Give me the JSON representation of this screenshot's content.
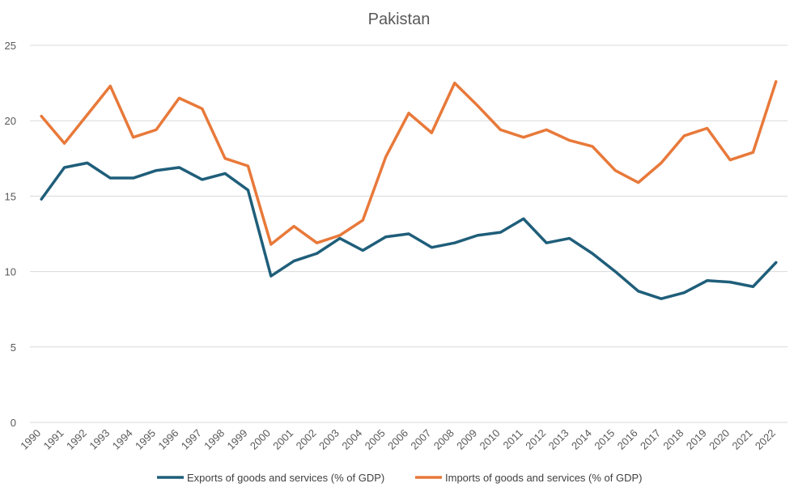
{
  "chart_data": {
    "type": "line",
    "title": "Pakistan",
    "xlabel": "",
    "ylabel": "",
    "x": [
      "1990",
      "1991",
      "1992",
      "1993",
      "1994",
      "1995",
      "1996",
      "1997",
      "1998",
      "1999",
      "2000",
      "2001",
      "2002",
      "2003",
      "2004",
      "2005",
      "2006",
      "2007",
      "2008",
      "2009",
      "2010",
      "2011",
      "2012",
      "2013",
      "2014",
      "2015",
      "2016",
      "2017",
      "2018",
      "2019",
      "2020",
      "2021",
      "2022"
    ],
    "ylim": [
      0,
      25
    ],
    "yticks": [
      0,
      5,
      10,
      15,
      20,
      25
    ],
    "grid": true,
    "legend_position": "bottom",
    "series": [
      {
        "name": "Exports of goods and services (% of GDP)",
        "color": "#1f5e7a",
        "values": [
          14.8,
          16.9,
          17.2,
          16.2,
          16.2,
          16.7,
          16.9,
          16.1,
          16.5,
          15.4,
          9.7,
          10.7,
          11.2,
          12.2,
          11.4,
          12.3,
          12.5,
          11.6,
          11.9,
          12.4,
          12.6,
          13.5,
          11.9,
          12.2,
          11.2,
          10.0,
          8.7,
          8.2,
          8.6,
          9.4,
          9.3,
          9.0,
          10.6
        ]
      },
      {
        "name": "Imports of goods and services (% of GDP)",
        "color": "#e8793a",
        "values": [
          20.3,
          18.5,
          20.4,
          22.3,
          18.9,
          19.4,
          21.5,
          20.8,
          17.5,
          17.0,
          11.8,
          13.0,
          11.9,
          12.4,
          13.4,
          17.6,
          20.5,
          19.2,
          22.5,
          21.0,
          19.4,
          18.9,
          19.4,
          18.7,
          18.3,
          16.7,
          15.9,
          17.2,
          19.0,
          19.5,
          17.4,
          17.9,
          22.6
        ]
      }
    ]
  }
}
